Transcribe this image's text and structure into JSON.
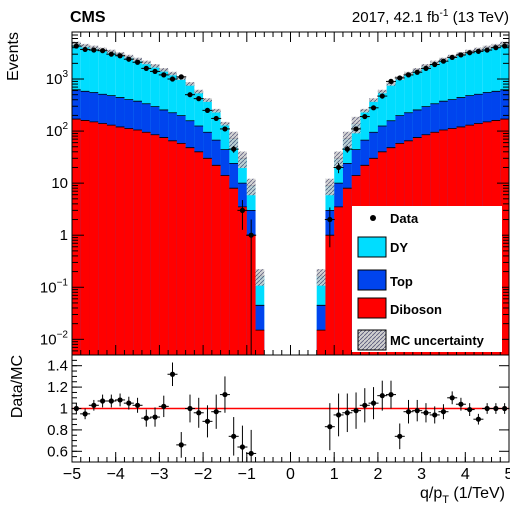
{
  "chart_data": [
    {
      "type": "bar",
      "stacked": true,
      "y_scale": "log",
      "ylabel": "Events",
      "ylim": [
        0.005,
        8000
      ],
      "xlim": [
        -5,
        5
      ],
      "experiment": "CMS",
      "lumi_text": "2017, 42.1 fb",
      "lumi_sup": "-1",
      "lumi_energy": " (13 TeV)",
      "yticks": [
        {
          "label": "10",
          "sup": "3",
          "value": 1000
        },
        {
          "label": "10",
          "sup": "2",
          "value": 100
        },
        {
          "label": "10",
          "sup": "",
          "value": 10
        },
        {
          "label": "1",
          "sup": "",
          "value": 1
        },
        {
          "label": "10",
          "sup": "−1",
          "value": 0.1
        },
        {
          "label": "10",
          "sup": "−2",
          "value": 0.01
        }
      ],
      "x_bins": [
        -5.0,
        -4.8,
        -4.6,
        -4.4,
        -4.2,
        -4.0,
        -3.8,
        -3.6,
        -3.4,
        -3.2,
        -3.0,
        -2.8,
        -2.6,
        -2.4,
        -2.2,
        -2.0,
        -1.8,
        -1.6,
        -1.4,
        -1.2,
        -1.0,
        -0.8,
        -0.6,
        -0.4,
        -0.2,
        0.0,
        0.2,
        0.4,
        0.6,
        0.8,
        1.0,
        1.2,
        1.4,
        1.6,
        1.8,
        2.0,
        2.2,
        2.4,
        2.6,
        2.8,
        3.0,
        3.2,
        3.4,
        3.6,
        3.8,
        4.0,
        4.2,
        4.4,
        4.6,
        4.8,
        5.0
      ],
      "series": [
        {
          "name": "Diboson",
          "color": "#ff0000",
          "values": [
            170,
            160,
            150,
            140,
            130,
            120,
            112,
            105,
            95,
            85,
            75,
            65,
            58,
            48,
            40,
            30,
            22,
            14,
            8,
            3.5,
            1.0,
            0.015,
            0,
            0,
            0,
            0,
            0,
            0,
            0.015,
            1.0,
            3.5,
            8,
            14,
            22,
            30,
            40,
            48,
            58,
            65,
            75,
            85,
            95,
            105,
            112,
            120,
            130,
            140,
            150,
            160,
            170
          ]
        },
        {
          "name": "Top",
          "color": "#0044ee",
          "values": [
            450,
            420,
            400,
            370,
            350,
            320,
            290,
            270,
            240,
            210,
            180,
            160,
            140,
            110,
            85,
            65,
            45,
            30,
            16,
            6.5,
            2.0,
            0.03,
            0,
            0,
            0,
            0,
            0,
            0,
            0.03,
            2.0,
            6.5,
            16,
            30,
            45,
            65,
            85,
            110,
            140,
            160,
            180,
            210,
            240,
            270,
            290,
            320,
            350,
            370,
            400,
            420,
            450
          ]
        },
        {
          "name": "DY",
          "color": "#00ddff",
          "values": [
            4200,
            3800,
            3500,
            3200,
            2900,
            2600,
            2300,
            2000,
            1750,
            1500,
            1250,
            1050,
            850,
            650,
            450,
            300,
            180,
            95,
            48,
            20,
            6.0,
            0.12,
            0,
            0,
            0,
            0,
            0,
            0,
            0.12,
            6.0,
            20,
            48,
            95,
            180,
            300,
            450,
            650,
            850,
            1050,
            1250,
            1500,
            1750,
            2000,
            2300,
            2600,
            2900,
            3200,
            3500,
            3800,
            4200
          ]
        }
      ],
      "data_points": {
        "name": "Data",
        "x": [
          -4.9,
          -4.7,
          -4.5,
          -4.3,
          -4.1,
          -3.9,
          -3.7,
          -3.5,
          -3.3,
          -3.1,
          -2.9,
          -2.7,
          -2.5,
          -2.3,
          -2.1,
          -1.9,
          -1.7,
          -1.5,
          -1.3,
          -1.1,
          -0.9,
          0.9,
          1.1,
          1.3,
          1.5,
          1.7,
          1.9,
          2.1,
          2.3,
          2.5,
          2.7,
          2.9,
          3.1,
          3.3,
          3.5,
          3.7,
          3.9,
          4.1,
          4.3,
          4.5,
          4.7,
          4.9
        ],
        "y": [
          4300,
          3700,
          3600,
          3500,
          3000,
          2800,
          2400,
          2100,
          1600,
          1400,
          1200,
          1000,
          1100,
          500,
          420,
          250,
          175,
          110,
          45,
          3.0,
          1.0,
          2.0,
          20,
          45,
          110,
          190,
          280,
          470,
          900,
          1050,
          1200,
          1350,
          1600,
          1900,
          2200,
          2600,
          2900,
          3200,
          3400,
          3600,
          4000,
          4300
        ]
      },
      "uncertainty_name": "MC uncertainty",
      "legend": [
        "Data",
        "DY",
        "Top",
        "Diboson",
        "MC uncertainty"
      ],
      "legend_position": "bottom-right"
    },
    {
      "type": "scatter",
      "ylabel": "Data/MC",
      "xlabel": "q/p",
      "xlabel_sub": "T",
      "xlabel_unit": " (1/TeV)",
      "xlim": [
        -5,
        5
      ],
      "ylim": [
        0.5,
        1.5
      ],
      "reference_line": 1.0,
      "reference_color": "#ff0000",
      "xticks": [
        "−5",
        "−4",
        "−3",
        "−2",
        "−1",
        "0",
        "1",
        "2",
        "3",
        "4",
        "5"
      ],
      "xtick_values": [
        -5,
        -4,
        -3,
        -2,
        -1,
        0,
        1,
        2,
        3,
        4,
        5
      ],
      "yticks": [
        "1.4",
        "1.2",
        "1",
        "0.8",
        "0.6"
      ],
      "ytick_values": [
        1.4,
        1.2,
        1.0,
        0.8,
        0.6
      ],
      "points": {
        "x": [
          -4.9,
          -4.7,
          -4.5,
          -4.3,
          -4.1,
          -3.9,
          -3.7,
          -3.5,
          -3.3,
          -3.1,
          -2.9,
          -2.7,
          -2.5,
          -2.3,
          -2.1,
          -1.9,
          -1.7,
          -1.5,
          -1.3,
          -1.1,
          -0.9,
          0.9,
          1.1,
          1.3,
          1.5,
          1.7,
          1.9,
          2.1,
          2.3,
          2.5,
          2.7,
          2.9,
          3.1,
          3.3,
          3.5,
          3.7,
          3.9,
          4.1,
          4.3,
          4.5,
          4.7,
          4.9
        ],
        "y": [
          1.0,
          0.95,
          1.03,
          1.07,
          1.07,
          1.08,
          1.05,
          1.03,
          0.91,
          0.92,
          1.02,
          1.32,
          0.66,
          1.0,
          0.96,
          0.88,
          0.97,
          1.13,
          0.74,
          0.64,
          0.58,
          0.83,
          0.94,
          0.96,
          0.98,
          1.03,
          1.05,
          1.12,
          1.13,
          0.74,
          0.97,
          0.98,
          0.96,
          0.94,
          0.97,
          1.1,
          1.04,
          0.99,
          0.9,
          1.0,
          1.0,
          1.0
        ],
        "yerr": [
          0.05,
          0.05,
          0.05,
          0.06,
          0.06,
          0.06,
          0.06,
          0.07,
          0.08,
          0.09,
          0.1,
          0.11,
          0.12,
          0.13,
          0.14,
          0.15,
          0.16,
          0.17,
          0.18,
          0.2,
          0.22,
          0.22,
          0.2,
          0.18,
          0.17,
          0.16,
          0.15,
          0.14,
          0.13,
          0.12,
          0.11,
          0.1,
          0.09,
          0.08,
          0.07,
          0.06,
          0.06,
          0.06,
          0.05,
          0.05,
          0.05,
          0.05
        ]
      }
    }
  ]
}
